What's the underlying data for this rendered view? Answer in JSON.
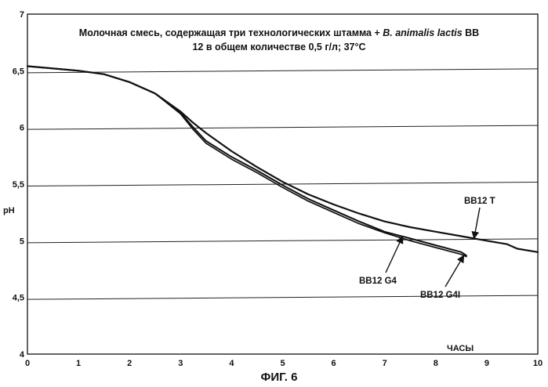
{
  "caption": "ФИГ. 6",
  "chart_data": {
    "type": "line",
    "title_line1_prefix": "Молочная смесь, содержащая три технологических штамма + ",
    "title_line1_italic": "B. animalis lactis",
    "title_line1_suffix": " BB",
    "title_line2": "12 в общем количестве 0,5 г/л; 37°С",
    "xlabel": "ЧАСЫ",
    "ylabel": "pH",
    "xlim": [
      0,
      10
    ],
    "ylim": [
      4,
      7
    ],
    "grid": true,
    "x_ticks": [
      "0",
      "1",
      "2",
      "3",
      "4",
      "5",
      "6",
      "7",
      "8",
      "9",
      "10"
    ],
    "y_ticks": [
      {
        "value": 4,
        "label": "4"
      },
      {
        "value": 4.5,
        "label": "4,5"
      },
      {
        "value": 5,
        "label": "5"
      },
      {
        "value": 5.5,
        "label": "5,5"
      },
      {
        "value": 6,
        "label": "6"
      },
      {
        "value": 6.5,
        "label": "6,5"
      },
      {
        "value": 7,
        "label": "7"
      }
    ],
    "series": [
      {
        "name": "BB12 T",
        "x": [
          0,
          0.5,
          1,
          1.5,
          2,
          2.5,
          3,
          3.25,
          3.5,
          4,
          4.5,
          5,
          5.5,
          6,
          6.5,
          7,
          7.5,
          8,
          8.5,
          9,
          9.4,
          9.6,
          10
        ],
        "y": [
          6.54,
          6.52,
          6.5,
          6.47,
          6.4,
          6.3,
          6.14,
          6.04,
          5.95,
          5.79,
          5.65,
          5.52,
          5.41,
          5.32,
          5.24,
          5.17,
          5.12,
          5.08,
          5.04,
          5.0,
          4.97,
          4.93,
          4.9
        ]
      },
      {
        "name": "BB12 G4",
        "x": [
          0,
          0.5,
          1,
          1.5,
          2,
          2.5,
          3,
          3.25,
          3.5,
          4,
          4.5,
          5,
          5.5,
          6,
          6.5,
          7,
          7.5,
          8,
          8.5,
          8.6
        ],
        "y": [
          6.54,
          6.52,
          6.5,
          6.47,
          6.4,
          6.3,
          6.13,
          6.0,
          5.88,
          5.74,
          5.62,
          5.49,
          5.37,
          5.27,
          5.17,
          5.08,
          5.02,
          4.96,
          4.9,
          4.87
        ]
      },
      {
        "name": "BB12 G4I",
        "x": [
          0,
          0.5,
          1,
          1.5,
          2,
          2.5,
          3,
          3.25,
          3.5,
          4,
          4.5,
          5,
          5.5,
          6,
          6.5,
          7,
          7.5,
          8,
          8.5,
          8.6
        ],
        "y": [
          6.54,
          6.52,
          6.5,
          6.47,
          6.4,
          6.3,
          6.12,
          5.98,
          5.86,
          5.72,
          5.6,
          5.47,
          5.35,
          5.25,
          5.15,
          5.07,
          5.0,
          4.94,
          4.88,
          4.86
        ]
      }
    ],
    "annotations": [
      {
        "text": "BB12 T",
        "series": 0,
        "arrow_to_x": 8.75
      },
      {
        "text": "BB12 G4",
        "series": 1,
        "arrow_to_x": 7.35
      },
      {
        "text": "BB12 G4I",
        "series": 2,
        "arrow_to_x": 8.55
      }
    ]
  }
}
